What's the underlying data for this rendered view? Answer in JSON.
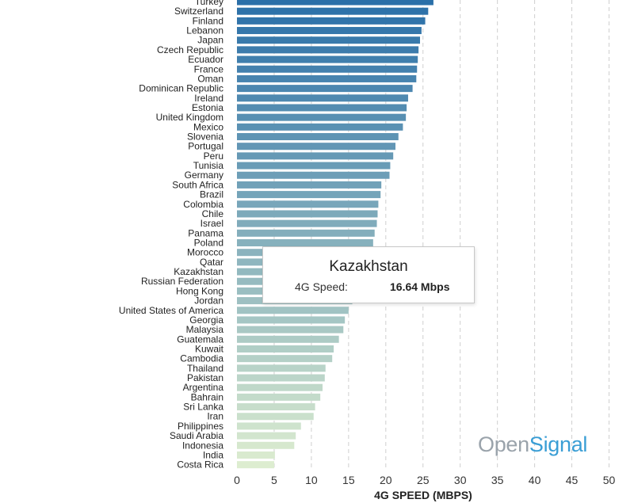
{
  "chart_data": {
    "type": "bar",
    "orientation": "horizontal",
    "xlabel": "4G SPEED (MBPS)",
    "xlim": [
      0,
      50
    ],
    "xticks": [
      0,
      5,
      10,
      15,
      20,
      25,
      30,
      35,
      40,
      45,
      50
    ],
    "grid": true,
    "categories": [
      "Turkey",
      "Switzerland",
      "Finland",
      "Lebanon",
      "Japan",
      "Czech Republic",
      "Ecuador",
      "France",
      "Oman",
      "Dominican Republic",
      "Ireland",
      "Estonia",
      "United Kingdom",
      "Mexico",
      "Slovenia",
      "Portugal",
      "Peru",
      "Tunisia",
      "Germany",
      "South Africa",
      "Brazil",
      "Colombia",
      "Chile",
      "Israel",
      "Panama",
      "Poland",
      "Morocco",
      "Qatar",
      "Kazakhstan",
      "Russian Federation",
      "Hong Kong",
      "Jordan",
      "United States of America",
      "Georgia",
      "Malaysia",
      "Guatemala",
      "Kuwait",
      "Cambodia",
      "Thailand",
      "Pakistan",
      "Argentina",
      "Bahrain",
      "Sri Lanka",
      "Iran",
      "Philippines",
      "Saudi Arabia",
      "Indonesia",
      "India",
      "Costa Rica"
    ],
    "values": [
      26.4,
      25.7,
      25.3,
      24.8,
      24.6,
      24.4,
      24.3,
      24.2,
      24.1,
      23.6,
      23.0,
      22.8,
      22.7,
      22.3,
      21.7,
      21.3,
      21.0,
      20.6,
      20.5,
      19.4,
      19.3,
      19.0,
      18.9,
      18.8,
      18.5,
      18.3,
      18.0,
      17.6,
      16.64,
      16.3,
      16.0,
      15.5,
      15.0,
      14.5,
      14.3,
      13.7,
      13.0,
      12.8,
      11.9,
      11.8,
      11.5,
      11.2,
      10.5,
      10.3,
      8.6,
      7.9,
      7.7,
      5.1,
      5.0
    ],
    "color_start": "#2a6fa8",
    "color_end": "#ddedd0"
  },
  "tooltip": {
    "title": "Kazakhstan",
    "label": "4G Speed:",
    "value": "16.64 Mbps"
  },
  "brand": {
    "part1": "Open",
    "part2": "Signal"
  }
}
